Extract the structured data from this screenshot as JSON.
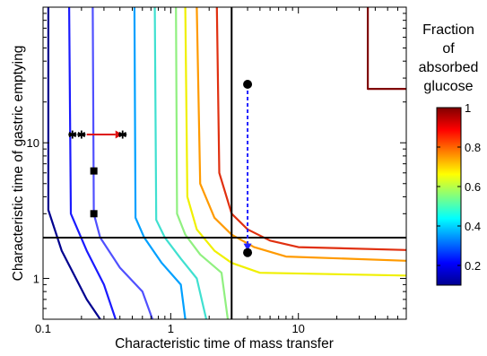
{
  "chart_data": {
    "type": "line",
    "title": "",
    "xlabel": "Characteristic time of mass transfer",
    "ylabel": "Characteristic time of gastric emptying",
    "xscale": "log",
    "yscale": "log",
    "xlim": [
      0.1,
      70
    ],
    "ylim": [
      0.5,
      100
    ],
    "x_ticks": [
      {
        "value": 0.1,
        "label": "0.1"
      },
      {
        "value": 1,
        "label": "1"
      },
      {
        "value": 10,
        "label": "10"
      }
    ],
    "y_ticks": [
      {
        "value": 1,
        "label": "1"
      },
      {
        "value": 10,
        "label": "10"
      }
    ],
    "grid": false,
    "colorbar": {
      "title_lines": [
        "Fraction",
        "of",
        "absorbed",
        "glucose"
      ],
      "min": 0.1,
      "max": 1.0,
      "ticks": [
        {
          "value": 0.2,
          "label": "0.2"
        },
        {
          "value": 0.4,
          "label": "0.4"
        },
        {
          "value": 0.6,
          "label": "0.6"
        },
        {
          "value": 0.8,
          "label": "0.8"
        },
        {
          "value": 1.0,
          "label": "1"
        }
      ]
    },
    "contours": [
      {
        "level": 0.1,
        "color": "#00008f",
        "points": [
          [
            0.11,
            100
          ],
          [
            0.11,
            3.2
          ],
          [
            0.14,
            1.6
          ],
          [
            0.22,
            0.7
          ],
          [
            0.28,
            0.5
          ]
        ]
      },
      {
        "level": 0.2,
        "color": "#1a1aff",
        "points": [
          [
            0.16,
            100
          ],
          [
            0.165,
            3.0
          ],
          [
            0.22,
            1.6
          ],
          [
            0.3,
            0.9
          ],
          [
            0.37,
            0.5
          ]
        ]
      },
      {
        "level": 0.3,
        "color": "#5050ff",
        "points": [
          [
            0.245,
            100
          ],
          [
            0.25,
            3.0
          ],
          [
            0.28,
            2.0
          ],
          [
            0.4,
            1.2
          ],
          [
            0.6,
            0.8
          ],
          [
            0.72,
            0.5
          ]
        ]
      },
      {
        "level": 0.4,
        "color": "#00a0ff",
        "points": [
          [
            0.52,
            100
          ],
          [
            0.53,
            2.8
          ],
          [
            0.62,
            2.0
          ],
          [
            0.85,
            1.3
          ],
          [
            1.2,
            0.9
          ],
          [
            1.3,
            0.5
          ]
        ]
      },
      {
        "level": 0.5,
        "color": "#40e0d0",
        "points": [
          [
            0.75,
            100
          ],
          [
            0.77,
            2.7
          ],
          [
            0.9,
            2.0
          ],
          [
            1.2,
            1.4
          ],
          [
            1.6,
            1.0
          ],
          [
            1.9,
            0.5
          ]
        ]
      },
      {
        "level": 0.6,
        "color": "#90f080",
        "points": [
          [
            1.1,
            100
          ],
          [
            1.12,
            3.0
          ],
          [
            1.3,
            2.1
          ],
          [
            1.7,
            1.5
          ],
          [
            2.5,
            1.1
          ],
          [
            2.8,
            0.5
          ]
        ]
      },
      {
        "level": 0.7,
        "color": "#f0f000",
        "points": [
          [
            1.3,
            100
          ],
          [
            1.35,
            4.0
          ],
          [
            1.6,
            2.3
          ],
          [
            2.2,
            1.6
          ],
          [
            3,
            1.3
          ],
          [
            5,
            1.1
          ],
          [
            70,
            1.05
          ]
        ]
      },
      {
        "level": 0.8,
        "color": "#ff9a00",
        "points": [
          [
            1.6,
            100
          ],
          [
            1.7,
            5.0
          ],
          [
            2.2,
            2.8
          ],
          [
            3,
            2.1
          ],
          [
            4.5,
            1.7
          ],
          [
            8,
            1.45
          ],
          [
            70,
            1.35
          ]
        ]
      },
      {
        "level": 0.9,
        "color": "#e03010",
        "points": [
          [
            2.3,
            100
          ],
          [
            2.4,
            6.0
          ],
          [
            3,
            3.0
          ],
          [
            4,
            2.3
          ],
          [
            6,
            1.9
          ],
          [
            10,
            1.7
          ],
          [
            70,
            1.62
          ]
        ]
      },
      {
        "level": 1.0,
        "color": "#800000",
        "points": [
          [
            35,
            100
          ],
          [
            35,
            25
          ],
          [
            70,
            25
          ]
        ]
      }
    ],
    "reference_lines": [
      {
        "orientation": "vertical",
        "value": 3
      },
      {
        "orientation": "horizontal",
        "value": 2
      }
    ],
    "markers": [
      {
        "shape": "star",
        "x": 0.17,
        "y": 11.5
      },
      {
        "shape": "star",
        "x": 0.2,
        "y": 11.5
      },
      {
        "shape": "star",
        "x": 0.42,
        "y": 11.5
      },
      {
        "shape": "square",
        "x": 0.25,
        "y": 6.2
      },
      {
        "shape": "square",
        "x": 0.25,
        "y": 3.0
      },
      {
        "shape": "circle",
        "x": 4,
        "y": 27
      },
      {
        "shape": "circle",
        "x": 4,
        "y": 1.55
      }
    ],
    "arrows": [
      {
        "color": "#dd1111",
        "style": "solid",
        "from": [
          0.22,
          11.5
        ],
        "to": [
          0.42,
          11.5
        ]
      },
      {
        "color": "#2222ff",
        "style": "dashed",
        "from": [
          4,
          27
        ],
        "to": [
          4,
          1.6
        ]
      }
    ]
  }
}
